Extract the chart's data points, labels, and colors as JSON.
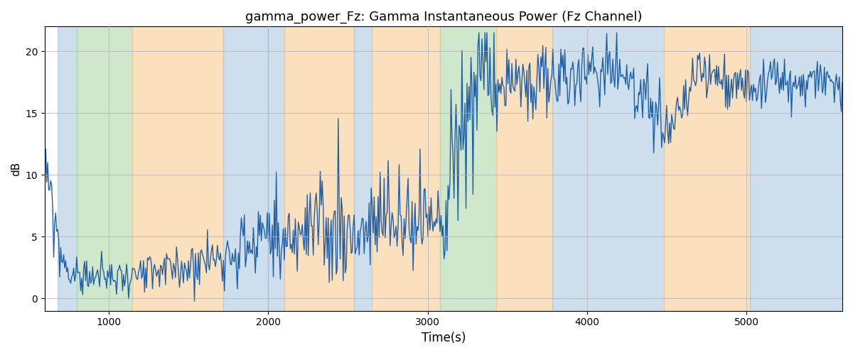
{
  "title": "gamma_power_Fz: Gamma Instantaneous Power (Fz Channel)",
  "xlabel": "Time(s)",
  "ylabel": "dB",
  "xlim": [
    600,
    5600
  ],
  "ylim": [
    -1,
    22
  ],
  "line_color": "#2060a8",
  "line_width": 1.0,
  "background_bands": [
    {
      "xstart": 680,
      "xend": 800,
      "color": "#adc8e0",
      "alpha": 0.6
    },
    {
      "xstart": 800,
      "xend": 1150,
      "color": "#a8d4a0",
      "alpha": 0.55
    },
    {
      "xstart": 1150,
      "xend": 1720,
      "color": "#f7c888",
      "alpha": 0.55
    },
    {
      "xstart": 1720,
      "xend": 2000,
      "color": "#adc8e0",
      "alpha": 0.6
    },
    {
      "xstart": 2000,
      "xend": 2100,
      "color": "#adc8e0",
      "alpha": 0.6
    },
    {
      "xstart": 2100,
      "xend": 2540,
      "color": "#f7c888",
      "alpha": 0.55
    },
    {
      "xstart": 2540,
      "xend": 2650,
      "color": "#adc8e0",
      "alpha": 0.6
    },
    {
      "xstart": 2650,
      "xend": 3080,
      "color": "#f7c888",
      "alpha": 0.55
    },
    {
      "xstart": 3080,
      "xend": 3430,
      "color": "#a8d4a0",
      "alpha": 0.55
    },
    {
      "xstart": 3430,
      "xend": 3780,
      "color": "#f7c888",
      "alpha": 0.55
    },
    {
      "xstart": 3780,
      "xend": 4480,
      "color": "#adc8e0",
      "alpha": 0.6
    },
    {
      "xstart": 4480,
      "xend": 5020,
      "color": "#f7c888",
      "alpha": 0.55
    },
    {
      "xstart": 5020,
      "xend": 5600,
      "color": "#adc8e0",
      "alpha": 0.6
    }
  ],
  "grid_color": "#b0b0b8",
  "yticks": [
    0,
    5,
    10,
    15,
    20
  ],
  "xticks": [
    1000,
    2000,
    3000,
    4000,
    5000
  ],
  "figsize": [
    12,
    5
  ],
  "dpi": 100
}
